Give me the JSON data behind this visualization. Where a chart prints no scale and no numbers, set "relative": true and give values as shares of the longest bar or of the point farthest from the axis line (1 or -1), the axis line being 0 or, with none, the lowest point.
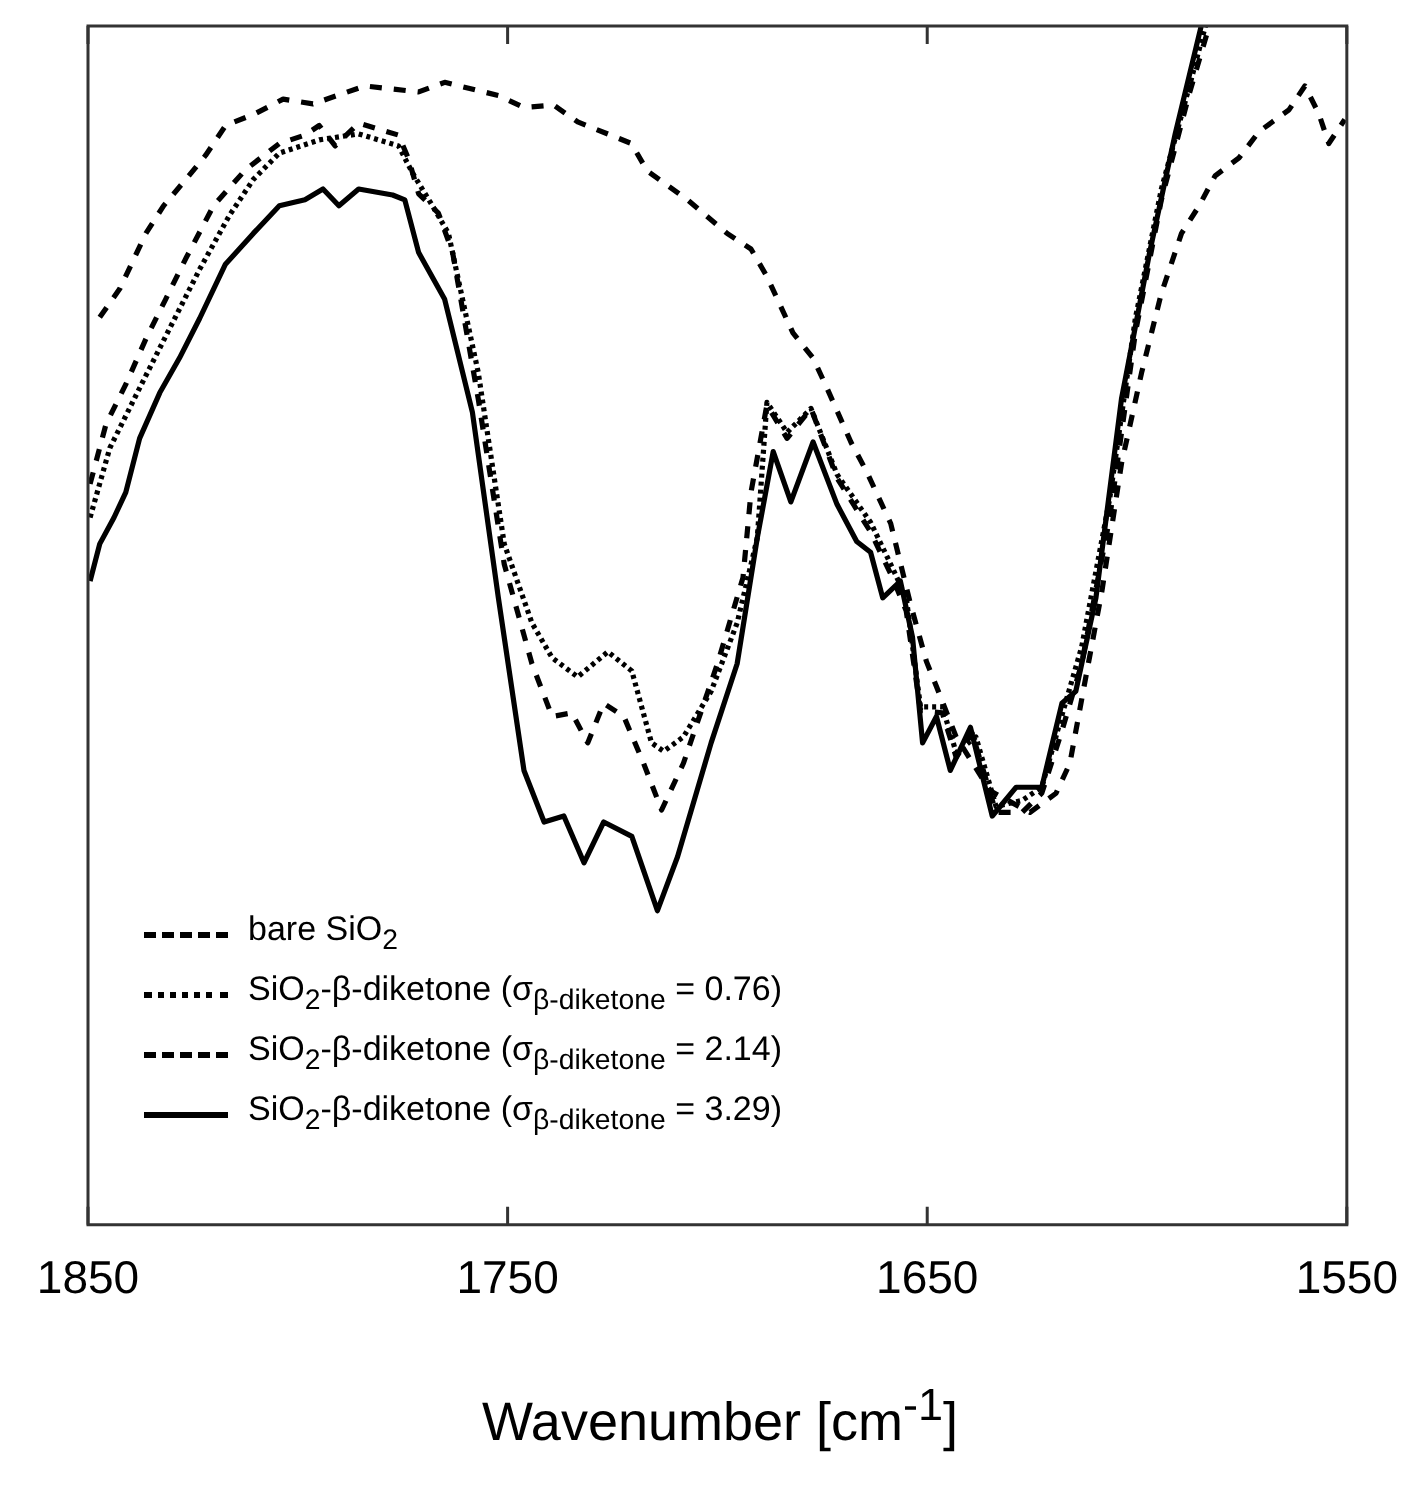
{
  "chart_data": {
    "type": "line",
    "relative": true,
    "xlabel": "Wavenumber [cm$^{-1}$]",
    "xlim": [
      1850,
      1550
    ],
    "xticks": [
      1850,
      1750,
      1650,
      1550
    ],
    "legend": "bottom left",
    "marker": "none",
    "grid": false,
    "series": [
      {
        "name": "bare SiO$_{2}$",
        "color": "#000000",
        "line_style": "dashed",
        "x": [
          1847.2,
          1842.4,
          1836.2,
          1832.0,
          1826.7,
          1822.0,
          1817.2,
          1810.1,
          1803.5,
          1796.4,
          1784.0,
          1771.2,
          1765.0,
          1752.2,
          1746.1,
          1739.0,
          1733.3,
          1720.5,
          1716.7,
          1707.1,
          1697.7,
          1692.0,
          1688.2,
          1682.0,
          1677.2,
          1673.9,
          1668.2,
          1664.4,
          1658.7,
          1655.9,
          1654.0,
          1650.2,
          1647.8,
          1643.1,
          1635.0,
          1625.5,
          1619.3,
          1616.0,
          1612.2,
          1608.4,
          1603.7,
          1598.9,
          1594.2,
          1589.4,
          1585.2,
          1581.4,
          1575.7,
          1570.9,
          1563.8,
          1560.0,
          1556.7,
          1554.3,
          1550.5
        ],
        "values": [
          0.757,
          0.781,
          0.827,
          0.85,
          0.872,
          0.892,
          0.917,
          0.927,
          0.939,
          0.935,
          0.95,
          0.945,
          0.953,
          0.942,
          0.932,
          0.934,
          0.92,
          0.902,
          0.879,
          0.855,
          0.827,
          0.814,
          0.791,
          0.744,
          0.723,
          0.698,
          0.653,
          0.628,
          0.585,
          0.545,
          0.518,
          0.47,
          0.449,
          0.407,
          0.362,
          0.344,
          0.36,
          0.385,
          0.457,
          0.528,
          0.635,
          0.711,
          0.777,
          0.827,
          0.85,
          0.875,
          0.89,
          0.912,
          0.93,
          0.95,
          0.927,
          0.902,
          0.922
        ]
      },
      {
        "name": "SiO$_{2}$-β-diketone (σ$_{β-diketone}$ = 0.76)",
        "color": "#000000",
        "line_style": "dotted",
        "x": [
          1849.5,
          1844.8,
          1837.7,
          1830.5,
          1823.4,
          1816.3,
          1810.6,
          1804.4,
          1794.9,
          1785.5,
          1776.0,
          1772.6,
          1767.9,
          1764.1,
          1757.0,
          1750.8,
          1744.2,
          1739.4,
          1733.3,
          1726.1,
          1720.4,
          1715.7,
          1712.8,
          1708.1,
          1701.5,
          1695.3,
          1690.5,
          1688.2,
          1683.4,
          1677.7,
          1671.5,
          1663.5,
          1658.3,
          1655.0,
          1651.6,
          1646.4,
          1643.1,
          1638.4,
          1633.6,
          1627.4,
          1622.7,
          1617.9,
          1613.2,
          1606.5,
          1600.4,
          1594.2,
          1587.5,
          1583.7
        ],
        "values": [
          0.59,
          0.648,
          0.698,
          0.748,
          0.797,
          0.842,
          0.872,
          0.894,
          0.905,
          0.91,
          0.9,
          0.877,
          0.85,
          0.827,
          0.711,
          0.568,
          0.502,
          0.473,
          0.457,
          0.478,
          0.462,
          0.402,
          0.395,
          0.407,
          0.445,
          0.502,
          0.573,
          0.686,
          0.661,
          0.681,
          0.626,
          0.586,
          0.548,
          0.523,
          0.432,
          0.432,
          0.394,
          0.407,
          0.349,
          0.354,
          0.365,
          0.425,
          0.482,
          0.606,
          0.756,
          0.864,
          0.95,
          1.0
        ]
      },
      {
        "name": "SiO$_{2}$-β-diketone (σ$_{β-diketone}$ = 2.14)",
        "color": "#000000",
        "line_style": "dashed",
        "x": [
          1849.5,
          1845.7,
          1841.0,
          1836.2,
          1831.5,
          1826.7,
          1820.1,
          1812.5,
          1804.4,
          1798.3,
          1794.9,
          1791.1,
          1785.5,
          1776.0,
          1773.6,
          1771.2,
          1766.5,
          1763.1,
          1757.0,
          1750.8,
          1744.2,
          1739.4,
          1734.7,
          1730.9,
          1727.1,
          1722.3,
          1717.6,
          1713.3,
          1708.1,
          1700.0,
          1693.9,
          1692.0,
          1688.2,
          1683.4,
          1677.7,
          1671.5,
          1663.5,
          1658.3,
          1655.0,
          1651.6,
          1646.4,
          1643.1,
          1639.3,
          1633.6,
          1627.4,
          1622.7,
          1617.9,
          1613.2,
          1606.5,
          1600.4,
          1594.2,
          1587.5,
          1582.8
        ],
        "values": [
          0.618,
          0.668,
          0.701,
          0.739,
          0.772,
          0.806,
          0.85,
          0.88,
          0.902,
          0.909,
          0.917,
          0.9,
          0.919,
          0.909,
          0.889,
          0.86,
          0.844,
          0.811,
          0.689,
          0.551,
          0.468,
          0.424,
          0.427,
          0.402,
          0.435,
          0.424,
          0.385,
          0.346,
          0.385,
          0.468,
          0.54,
          0.611,
          0.684,
          0.656,
          0.681,
          0.623,
          0.578,
          0.54,
          0.512,
          0.429,
          0.427,
          0.39,
          0.41,
          0.344,
          0.344,
          0.36,
          0.412,
          0.468,
          0.59,
          0.744,
          0.855,
          0.944,
          1.0
        ]
      },
      {
        "name": "SiO$_{2}$-β-diketone (σ$_{β-diketone}$ = 3.29)",
        "color": "#000000",
        "line_style": "solid",
        "x": [
          1849.5,
          1847.2,
          1843.8,
          1841.0,
          1837.7,
          1832.9,
          1828.2,
          1823.4,
          1817.3,
          1810.6,
          1804.4,
          1798.3,
          1794.0,
          1790.2,
          1785.5,
          1777.4,
          1774.5,
          1771.2,
          1765.0,
          1758.4,
          1752.2,
          1746.1,
          1741.3,
          1736.6,
          1731.8,
          1727.1,
          1720.4,
          1714.3,
          1709.5,
          1701.5,
          1695.3,
          1690.5,
          1686.7,
          1682.5,
          1677.2,
          1671.5,
          1666.8,
          1663.5,
          1660.6,
          1656.4,
          1653.5,
          1651.1,
          1647.8,
          1644.5,
          1639.7,
          1634.5,
          1628.8,
          1622.7,
          1617.9,
          1614.6,
          1609.8,
          1603.7,
          1597.0,
          1590.9,
          1584.7
        ],
        "values": [
          0.537,
          0.568,
          0.59,
          0.611,
          0.656,
          0.694,
          0.723,
          0.756,
          0.801,
          0.827,
          0.85,
          0.855,
          0.864,
          0.85,
          0.864,
          0.859,
          0.855,
          0.811,
          0.772,
          0.678,
          0.523,
          0.379,
          0.336,
          0.341,
          0.302,
          0.336,
          0.324,
          0.262,
          0.307,
          0.402,
          0.468,
          0.573,
          0.645,
          0.603,
          0.653,
          0.601,
          0.57,
          0.561,
          0.523,
          0.537,
          0.49,
          0.402,
          0.424,
          0.379,
          0.415,
          0.341,
          0.365,
          0.365,
          0.435,
          0.445,
          0.523,
          0.689,
          0.811,
          0.91,
          1.0
        ]
      }
    ]
  }
}
